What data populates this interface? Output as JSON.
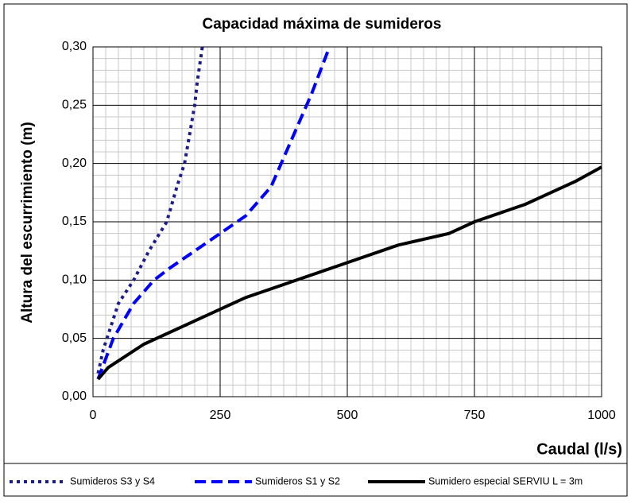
{
  "chart_data": {
    "type": "line",
    "title": "Capacidad máxima de sumideros",
    "xlabel": "Caudal (l/s)",
    "ylabel": "Altura del escurrimiento (m)",
    "xlim": [
      0,
      1000
    ],
    "xticks": [
      0,
      250,
      500,
      750,
      1000
    ],
    "ylim": [
      0,
      0.3
    ],
    "yticks": [
      {
        "value": 0,
        "label": "0,00"
      },
      {
        "value": 0.05,
        "label": "0,05"
      },
      {
        "value": 0.1,
        "label": "0,10"
      },
      {
        "value": 0.15,
        "label": "0,15"
      },
      {
        "value": 0.2,
        "label": "0,20"
      },
      {
        "value": 0.25,
        "label": "0,25"
      },
      {
        "value": 0.3,
        "label": "0,30"
      }
    ],
    "grid": true,
    "minor_grid": true,
    "legend": "bottom",
    "series": [
      {
        "name": "Sumideros S3 y S4",
        "color": "#1c1c8a",
        "dash": "dotted",
        "x": [
          10,
          20,
          50,
          80,
          110,
          145,
          165,
          180,
          200,
          205,
          215
        ],
        "values": [
          0.02,
          0.04,
          0.08,
          0.1,
          0.125,
          0.15,
          0.18,
          0.2,
          0.25,
          0.27,
          0.3
        ]
      },
      {
        "name": "Sumideros S1 y S2",
        "color": "#0000ff",
        "dash": "dashed",
        "x": [
          10,
          40,
          80,
          120,
          150,
          200,
          250,
          300,
          350,
          390,
          430,
          465
        ],
        "values": [
          0.015,
          0.05,
          0.08,
          0.1,
          0.11,
          0.125,
          0.14,
          0.155,
          0.18,
          0.22,
          0.26,
          0.3
        ]
      },
      {
        "name": "Sumidero especial SERVIU  L = 3m",
        "color": "#000000",
        "dash": "solid",
        "x": [
          10,
          30,
          100,
          200,
          300,
          400,
          500,
          600,
          700,
          750,
          850,
          950,
          1000
        ],
        "values": [
          0.015,
          0.025,
          0.045,
          0.065,
          0.085,
          0.1,
          0.115,
          0.13,
          0.14,
          0.15,
          0.165,
          0.185,
          0.197
        ]
      }
    ]
  }
}
